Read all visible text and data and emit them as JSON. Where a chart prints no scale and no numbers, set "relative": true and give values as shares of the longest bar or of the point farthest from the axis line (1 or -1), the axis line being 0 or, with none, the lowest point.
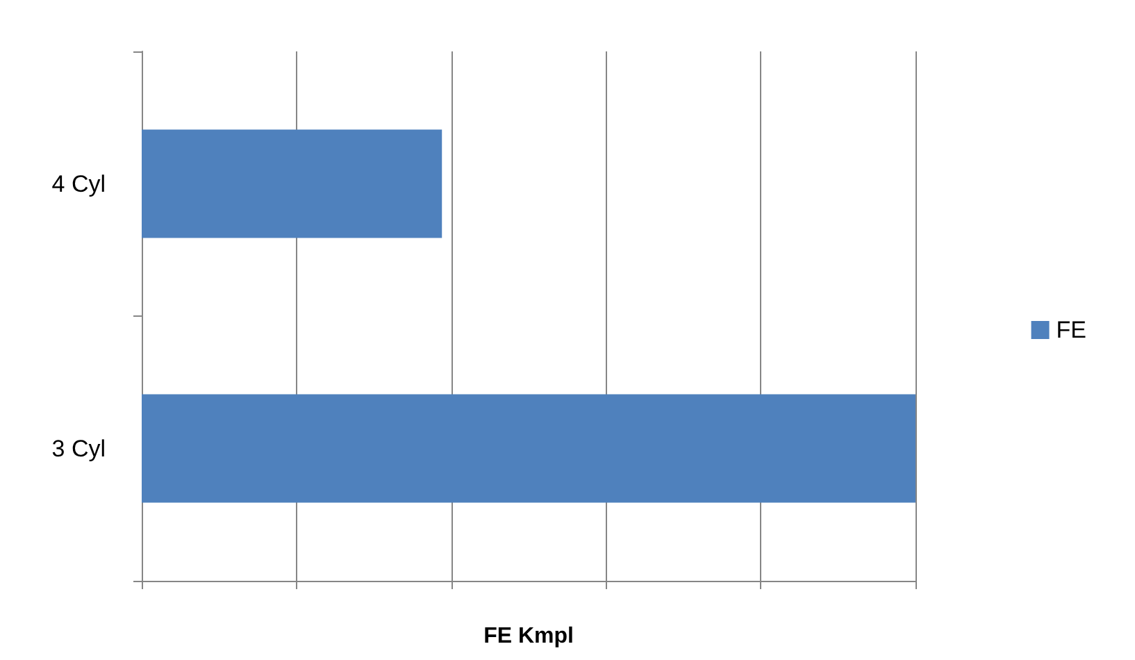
{
  "chart_data": {
    "type": "bar",
    "orientation": "horizontal",
    "relative": true,
    "xlabel": "FE Kmpl",
    "categories": [
      "4 Cyl",
      "3 Cyl"
    ],
    "series": [
      {
        "name": "FE",
        "color": "#4f81bd",
        "values": [
          0.388,
          1
        ]
      }
    ],
    "grid": "x",
    "legend": "right"
  }
}
